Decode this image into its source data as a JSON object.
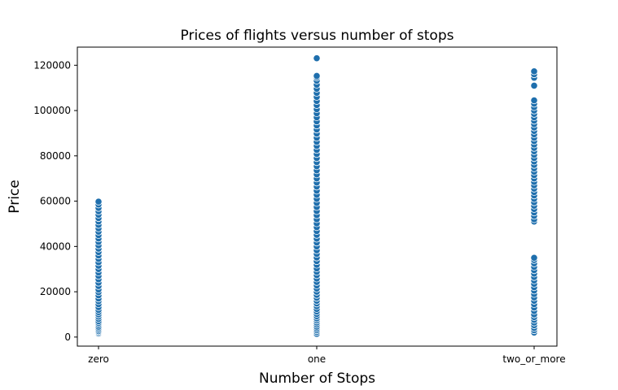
{
  "chart_data": {
    "type": "scatter",
    "title": "Prices of flights versus number of stops",
    "xlabel": "Number of Stops",
    "ylabel": "Price",
    "categories": [
      "zero",
      "one",
      "two_or_more"
    ],
    "ylim": [
      -4000,
      128000
    ],
    "yticks": [
      0,
      20000,
      40000,
      60000,
      80000,
      100000,
      120000
    ],
    "ytick_labels": [
      "0",
      "20000",
      "40000",
      "60000",
      "80000",
      "100000",
      "120000"
    ],
    "grid": false,
    "marker_color": "#1f6fad",
    "series": [
      {
        "category": "zero",
        "values": [
          1600,
          2100,
          2600,
          3200,
          3900,
          4600,
          5400,
          6200,
          7000,
          8000,
          9000,
          10000,
          11000,
          12000,
          13200,
          14500,
          15800,
          17000,
          18400,
          19800,
          21000,
          22500,
          24000,
          25500,
          27000,
          28500,
          30000,
          31500,
          33000,
          34500,
          36000,
          37500,
          39000,
          40500,
          42000,
          43500,
          45000,
          46500,
          48000,
          49500,
          51000,
          52500,
          54000,
          55500,
          57000,
          58500,
          59800
        ]
      },
      {
        "category": "one",
        "values": [
          1400,
          2200,
          3000,
          3800,
          4600,
          5500,
          6400,
          7300,
          8200,
          9200,
          10200,
          11300,
          12400,
          13600,
          14800,
          16000,
          17300,
          18600,
          20000,
          21400,
          22800,
          24300,
          25800,
          27300,
          28800,
          30300,
          31900,
          33500,
          35100,
          36700,
          38300,
          40000,
          41700,
          43400,
          45100,
          46800,
          48500,
          50200,
          52000,
          53800,
          55600,
          57400,
          59200,
          61000,
          62800,
          64600,
          66400,
          68200,
          70000,
          71800,
          73600,
          75400,
          77200,
          79000,
          80800,
          82600,
          84400,
          86200,
          88000,
          89800,
          91600,
          93400,
          95200,
          97000,
          98800,
          100600,
          102400,
          104200,
          106000,
          107800,
          109600,
          111400,
          113200,
          114600,
          115300,
          123100
        ]
      },
      {
        "category": "two_or_more",
        "values": [
          2000,
          3000,
          4000,
          5200,
          6400,
          7600,
          8800,
          10000,
          11500,
          13000,
          14500,
          16000,
          17500,
          19000,
          20500,
          22000,
          23500,
          25000,
          26500,
          28000,
          29500,
          31000,
          32500,
          34000,
          35000,
          51000,
          52000,
          53500,
          55000,
          56500,
          58000,
          59500,
          61000,
          62500,
          64000,
          65500,
          67000,
          68500,
          70000,
          71500,
          73000,
          74500,
          76000,
          77500,
          79000,
          80500,
          82000,
          83500,
          85000,
          86500,
          88000,
          89500,
          91000,
          92500,
          94000,
          95500,
          97000,
          98500,
          100000,
          101500,
          103000,
          104500,
          111000,
          114500,
          116000,
          117300
        ]
      }
    ]
  }
}
